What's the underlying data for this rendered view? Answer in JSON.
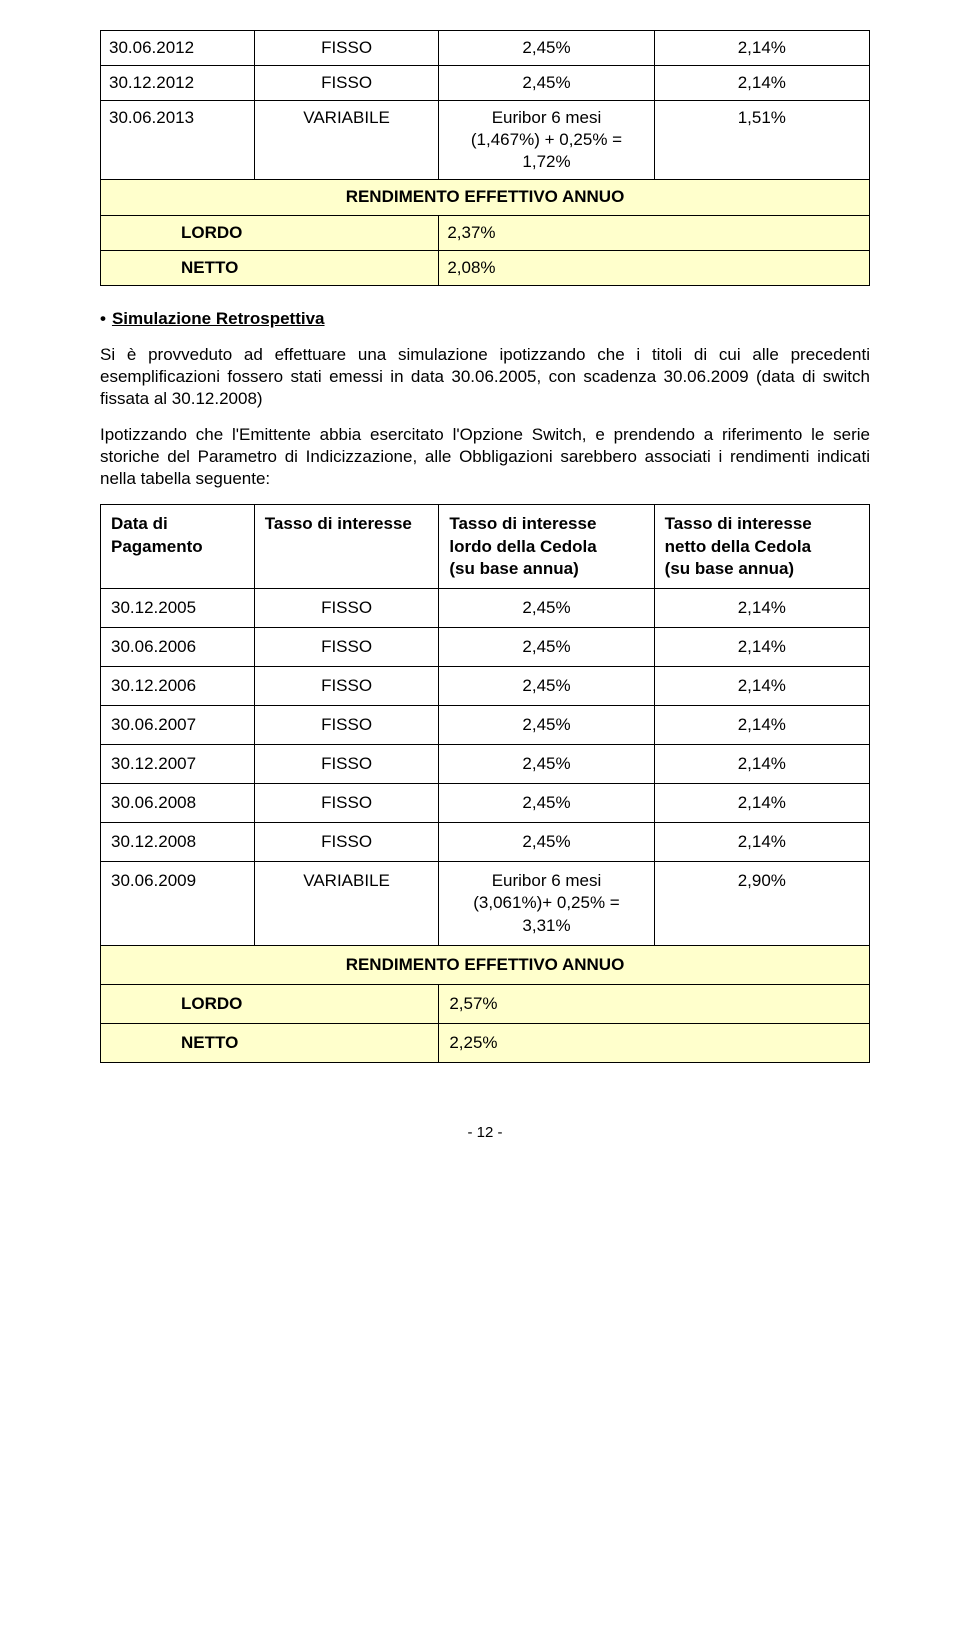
{
  "colors": {
    "highlight_bg": "#ffffcc",
    "border": "#000000",
    "text": "#000000",
    "page_bg": "#ffffff"
  },
  "table1": {
    "rows": [
      {
        "date": "30.06.2012",
        "type": "FISSO",
        "lordo": "2,45%",
        "netto": "2,14%"
      },
      {
        "date": "30.12.2012",
        "type": "FISSO",
        "lordo": "2,45%",
        "netto": "2,14%"
      },
      {
        "date": "30.06.2013",
        "type": "VARIABILE",
        "lordo": "Euribor 6 mesi\n(1,467%) + 0,25% =\n1,72%",
        "netto": "1,51%"
      }
    ],
    "eff_title": "RENDIMENTO EFFETTIVO ANNUO",
    "lordo_label": "LORDO",
    "lordo_val": "2,37%",
    "netto_label": "NETTO",
    "netto_val": "2,08%"
  },
  "section": {
    "bullet_title": "Simulazione Retrospettiva",
    "p1": "Si è provveduto ad effettuare una simulazione ipotizzando che i titoli di cui alle precedenti esemplificazioni fossero stati emessi in data 30.06.2005, con scadenza 30.06.2009 (data di switch fissata al 30.12.2008)",
    "p2": "Ipotizzando che l'Emittente abbia esercitato l'Opzione Switch, e prendendo a riferimento le serie storiche del Parametro di Indicizzazione, alle Obbligazioni sarebbero associati i rendimenti indicati nella tabella seguente:"
  },
  "table2": {
    "headers": {
      "date": "Data di\nPagamento",
      "type": "Tasso di interesse",
      "lordo": "Tasso di interesse\nlordo della Cedola\n(su base annua)",
      "netto": "Tasso di interesse\nnetto della Cedola\n(su base annua)"
    },
    "rows": [
      {
        "date": "30.12.2005",
        "type": "FISSO",
        "lordo": "2,45%",
        "netto": "2,14%"
      },
      {
        "date": "30.06.2006",
        "type": "FISSO",
        "lordo": "2,45%",
        "netto": "2,14%"
      },
      {
        "date": "30.12.2006",
        "type": "FISSO",
        "lordo": "2,45%",
        "netto": "2,14%"
      },
      {
        "date": "30.06.2007",
        "type": "FISSO",
        "lordo": "2,45%",
        "netto": "2,14%"
      },
      {
        "date": "30.12.2007",
        "type": "FISSO",
        "lordo": "2,45%",
        "netto": "2,14%"
      },
      {
        "date": "30.06.2008",
        "type": "FISSO",
        "lordo": "2,45%",
        "netto": "2,14%"
      },
      {
        "date": "30.12.2008",
        "type": "FISSO",
        "lordo": "2,45%",
        "netto": "2,14%"
      },
      {
        "date": "30.06.2009",
        "type": "VARIABILE",
        "lordo": "Euribor 6 mesi\n(3,061%)+ 0,25% =\n3,31%",
        "netto": "2,90%"
      }
    ],
    "eff_title": "RENDIMENTO EFFETTIVO ANNUO",
    "lordo_label": "LORDO",
    "lordo_val": "2,57%",
    "netto_label": "NETTO",
    "netto_val": "2,25%"
  },
  "page_num": "- 12 -"
}
